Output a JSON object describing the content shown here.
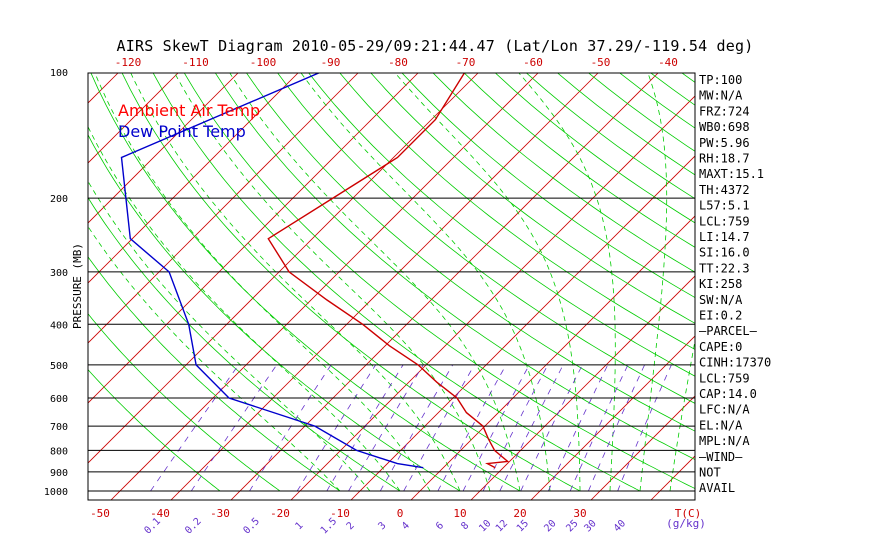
{
  "chart_data": {
    "type": "line",
    "title": "AIRS SkewT Diagram 2010-05-29/09:21:44.47 (Lat/Lon 37.29/-119.54 deg)",
    "ylabel": "PRESSURE (MB)",
    "xlabel_bottom_unit": "T(C)",
    "mixing_ratio_unit": "(g/kg)",
    "y_scale": "log",
    "ylim": [
      1000,
      100
    ],
    "xlim_bottom": [
      -50,
      40
    ],
    "pressure_ticks": [
      100,
      200,
      300,
      400,
      500,
      600,
      700,
      800,
      900,
      1000
    ],
    "temp_ticks_bottom": [
      -50,
      -40,
      -30,
      -20,
      -10,
      0,
      10,
      20,
      30
    ],
    "temp_ticks_top": [
      -120,
      -110,
      -100,
      -90,
      -80,
      -70,
      -60,
      -50,
      -40
    ],
    "mixing_ratio_labels": [
      "0.1",
      "0.2",
      "0.5",
      "1",
      "1.5",
      "2",
      "3",
      "4",
      "6",
      "8",
      "10",
      "12",
      "15",
      "20",
      "25",
      "30",
      "40"
    ],
    "legend": [
      {
        "name": "Ambient Air Temp",
        "color": "#ff0000"
      },
      {
        "name": "Dew Point Temp",
        "color": "#0000cc"
      }
    ],
    "series": [
      {
        "name": "Ambient Air Temp",
        "color": "#cc0000",
        "points": [
          {
            "p": 100,
            "t": -59
          },
          {
            "p": 130,
            "t": -56
          },
          {
            "p": 160,
            "t": -56
          },
          {
            "p": 200,
            "t": -60
          },
          {
            "p": 250,
            "t": -64
          },
          {
            "p": 300,
            "t": -55
          },
          {
            "p": 350,
            "t": -44
          },
          {
            "p": 400,
            "t": -34
          },
          {
            "p": 450,
            "t": -26
          },
          {
            "p": 500,
            "t": -18
          },
          {
            "p": 550,
            "t": -12
          },
          {
            "p": 600,
            "t": -6
          },
          {
            "p": 650,
            "t": -2
          },
          {
            "p": 700,
            "t": 3
          },
          {
            "p": 750,
            "t": 6
          },
          {
            "p": 800,
            "t": 9
          },
          {
            "p": 850,
            "t": 13
          },
          {
            "p": 860,
            "t": 10
          },
          {
            "p": 880,
            "t": 12
          }
        ]
      },
      {
        "name": "Dew Point Temp",
        "color": "#0000cc",
        "points": [
          {
            "p": 100,
            "t": -83
          },
          {
            "p": 160,
            "t": -102
          },
          {
            "p": 250,
            "t": -87
          },
          {
            "p": 300,
            "t": -75
          },
          {
            "p": 400,
            "t": -63
          },
          {
            "p": 500,
            "t": -55
          },
          {
            "p": 600,
            "t": -44
          },
          {
            "p": 700,
            "t": -25
          },
          {
            "p": 800,
            "t": -14
          },
          {
            "p": 860,
            "t": -5
          },
          {
            "p": 880,
            "t": 0
          }
        ]
      }
    ],
    "indices": [
      "TP:100",
      "MW:N/A",
      "FRZ:724",
      "WB0:698",
      "PW:5.96",
      "RH:18.7",
      "MAXT:15.1",
      "TH:4372",
      "L57:5.1",
      "LCL:759",
      "LI:14.7",
      "SI:16.0",
      "TT:22.3",
      "KI:258",
      "SW:N/A",
      "EI:0.2",
      "–PARCEL–",
      "CAPE:0",
      "CINH:17370",
      "LCL:759",
      "CAP:14.0",
      "LFC:N/A",
      "EL:N/A",
      "MPL:N/A",
      "–WIND–",
      "NOT",
      "AVAIL"
    ]
  }
}
